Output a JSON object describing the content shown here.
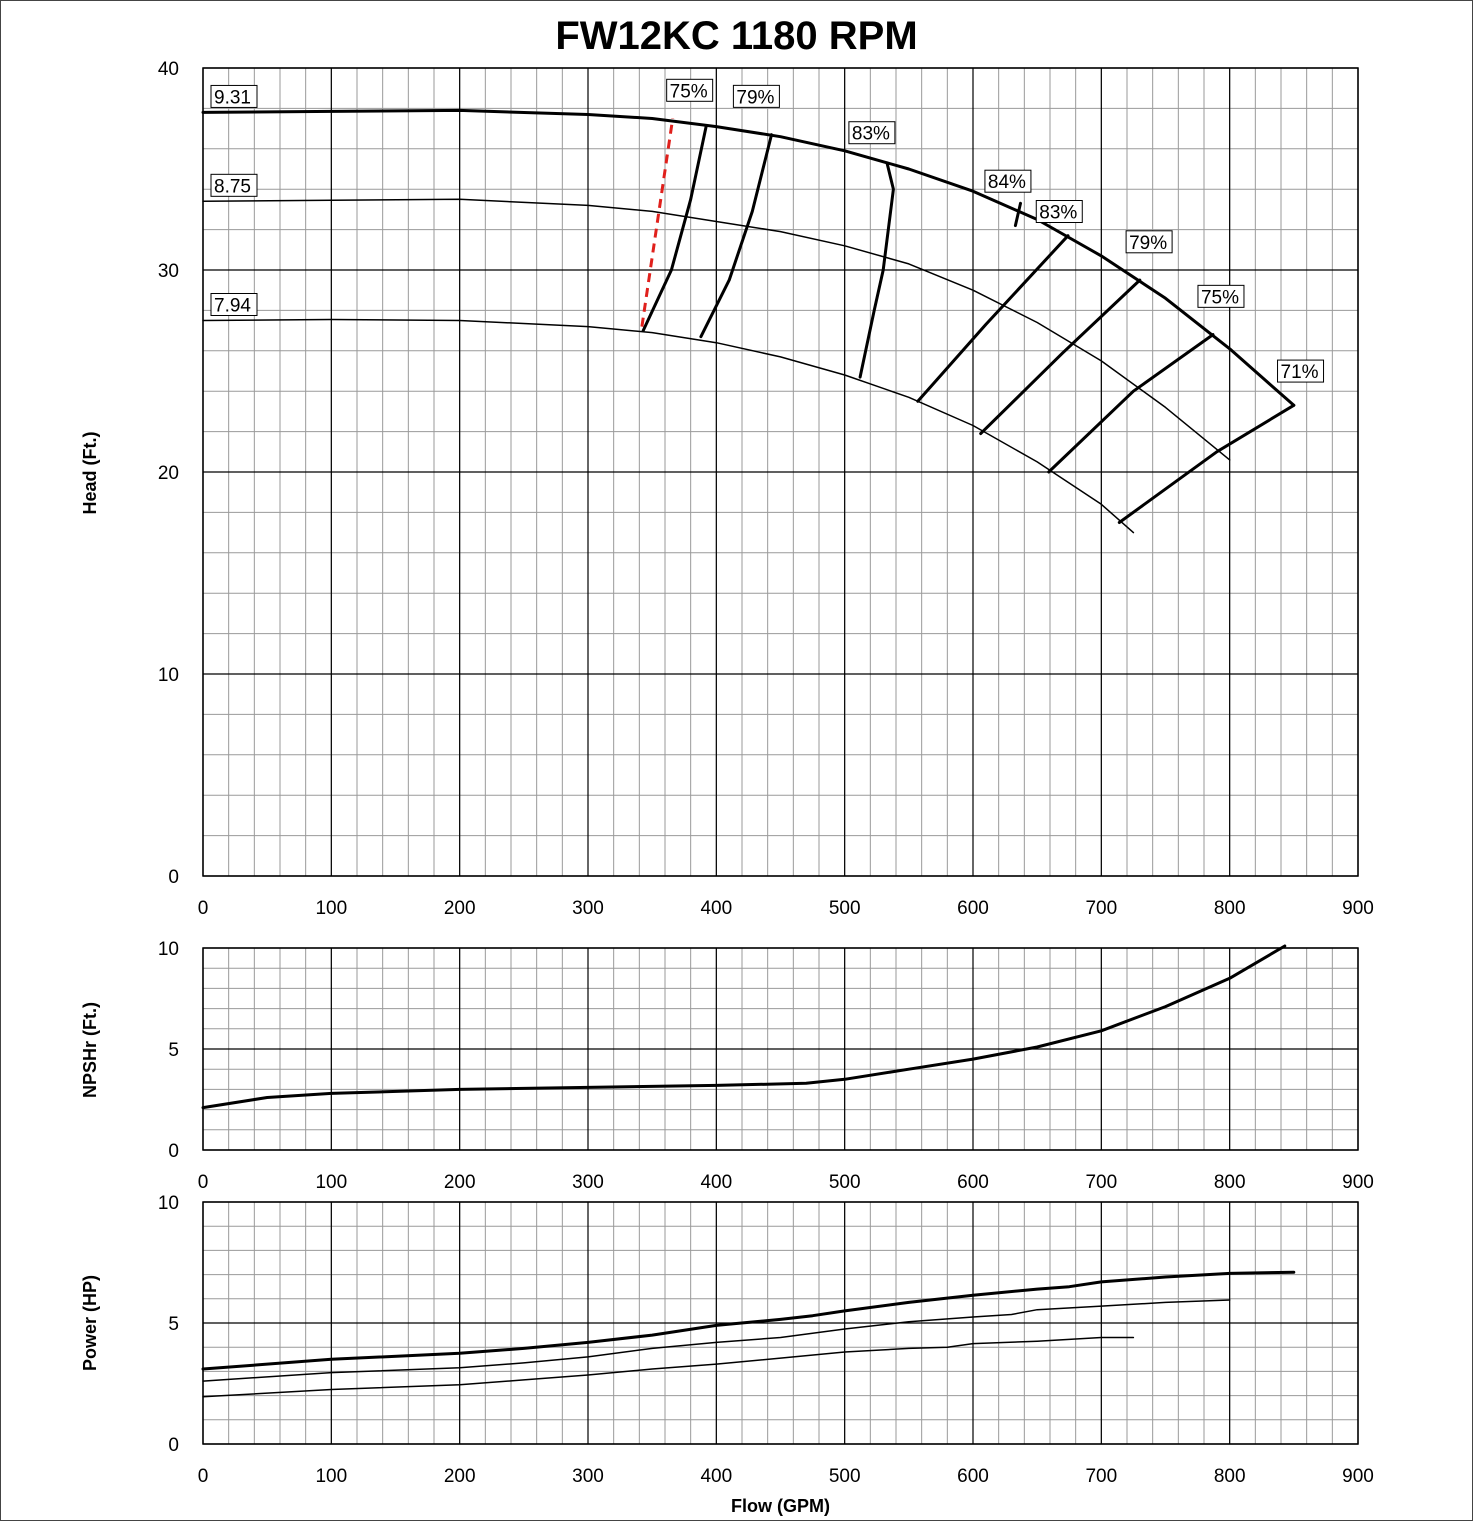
{
  "title": "FW12KC 1180 RPM",
  "chart_data": [
    {
      "type": "line",
      "panel": "head",
      "ylabel": "Head (Ft.)",
      "xlim": [
        0,
        900
      ],
      "ylim": [
        0,
        40
      ],
      "x_ticks": [
        0,
        100,
        200,
        300,
        400,
        500,
        600,
        700,
        800,
        900
      ],
      "y_ticks": [
        0,
        10,
        20,
        30,
        40
      ],
      "grid": true,
      "series": [
        {
          "name": "9.31",
          "kind": "impeller",
          "width": 3,
          "points": [
            [
              0,
              37.8
            ],
            [
              100,
              37.85
            ],
            [
              200,
              37.9
            ],
            [
              300,
              37.7
            ],
            [
              350,
              37.5
            ],
            [
              400,
              37.1
            ],
            [
              450,
              36.6
            ],
            [
              500,
              35.9
            ],
            [
              550,
              35.0
            ],
            [
              600,
              33.9
            ],
            [
              650,
              32.5
            ],
            [
              700,
              30.7
            ],
            [
              750,
              28.6
            ],
            [
              800,
              26.1
            ],
            [
              850,
              23.3
            ]
          ]
        },
        {
          "name": "8.75",
          "kind": "impeller",
          "width": 1.5,
          "points": [
            [
              0,
              33.4
            ],
            [
              100,
              33.45
            ],
            [
              200,
              33.5
            ],
            [
              300,
              33.2
            ],
            [
              350,
              32.9
            ],
            [
              400,
              32.4
            ],
            [
              450,
              31.9
            ],
            [
              500,
              31.2
            ],
            [
              550,
              30.3
            ],
            [
              600,
              29.0
            ],
            [
              650,
              27.4
            ],
            [
              700,
              25.5
            ],
            [
              750,
              23.2
            ],
            [
              800,
              20.6
            ]
          ]
        },
        {
          "name": "7.94",
          "kind": "impeller",
          "width": 1.5,
          "points": [
            [
              0,
              27.5
            ],
            [
              100,
              27.55
            ],
            [
              200,
              27.5
            ],
            [
              300,
              27.2
            ],
            [
              350,
              26.9
            ],
            [
              400,
              26.4
            ],
            [
              450,
              25.7
            ],
            [
              500,
              24.8
            ],
            [
              550,
              23.7
            ],
            [
              600,
              22.3
            ],
            [
              650,
              20.5
            ],
            [
              700,
              18.4
            ],
            [
              725,
              17.0
            ]
          ]
        }
      ],
      "efficiency_lines": [
        {
          "label": "75%",
          "label_at": [
            380,
            38.5
          ],
          "points": [
            [
              343,
              27.0
            ],
            [
              365,
              30.0
            ],
            [
              380,
              33.5
            ],
            [
              392,
              37.1
            ]
          ]
        },
        {
          "label": "79%",
          "label_at": [
            432,
            38.2
          ],
          "points": [
            [
              388,
              26.7
            ],
            [
              410,
              29.5
            ],
            [
              428,
              32.9
            ],
            [
              443,
              36.7
            ]
          ]
        },
        {
          "label": "83%",
          "label_at": [
            522,
            36.4
          ],
          "points": [
            [
              512,
              24.7
            ],
            [
              523,
              28.0
            ],
            [
              530,
              30.0
            ],
            [
              538,
              34.0
            ],
            [
              533,
              35.3
            ]
          ]
        },
        {
          "label": "84%",
          "label_at": [
            628,
            34.0
          ],
          "points": [
            [
              633,
              32.2
            ],
            [
              637,
              33.3
            ]
          ]
        },
        {
          "label": "83%",
          "label_at": [
            668,
            32.5
          ],
          "points": [
            [
              557,
              23.5
            ],
            [
              610,
              27.3
            ],
            [
              674,
              31.7
            ]
          ]
        },
        {
          "label": "79%",
          "label_at": [
            738,
            31.0
          ],
          "points": [
            [
              606,
              21.9
            ],
            [
              670,
              25.9
            ],
            [
              730,
              29.5
            ]
          ]
        },
        {
          "label": "75%",
          "label_at": [
            794,
            28.3
          ],
          "points": [
            [
              659,
              20.0
            ],
            [
              725,
              24.0
            ],
            [
              787,
              26.8
            ]
          ]
        },
        {
          "label": "71%",
          "label_at": [
            856,
            24.6
          ],
          "points": [
            [
              714,
              17.5
            ],
            [
              790,
              21.0
            ],
            [
              850,
              23.3
            ]
          ]
        }
      ],
      "npsh_limit_line": {
        "color": "#e0201c",
        "points": [
          [
            342,
            27.2
          ],
          [
            366,
            37.5
          ]
        ]
      }
    },
    {
      "type": "line",
      "panel": "npsh",
      "ylabel": "NPSHr (Ft.)",
      "xlim": [
        0,
        900
      ],
      "ylim": [
        0,
        10
      ],
      "x_ticks": [
        0,
        100,
        200,
        300,
        400,
        500,
        600,
        700,
        800,
        900
      ],
      "y_ticks": [
        0,
        5,
        10
      ],
      "grid": true,
      "series": [
        {
          "name": "NPSHr",
          "width": 3,
          "points": [
            [
              0,
              2.1
            ],
            [
              50,
              2.6
            ],
            [
              100,
              2.8
            ],
            [
              200,
              3.0
            ],
            [
              300,
              3.1
            ],
            [
              400,
              3.2
            ],
            [
              470,
              3.3
            ],
            [
              500,
              3.5
            ],
            [
              550,
              4.0
            ],
            [
              600,
              4.5
            ],
            [
              650,
              5.1
            ],
            [
              700,
              5.9
            ],
            [
              750,
              7.1
            ],
            [
              800,
              8.5
            ],
            [
              843,
              10.1
            ]
          ]
        }
      ]
    },
    {
      "type": "line",
      "panel": "power",
      "ylabel": "Power (HP)",
      "xlabel": "Flow (GPM)",
      "xlim": [
        0,
        900
      ],
      "ylim": [
        0,
        10
      ],
      "x_ticks": [
        0,
        100,
        200,
        300,
        400,
        500,
        600,
        700,
        800,
        900
      ],
      "y_ticks": [
        0,
        5,
        10
      ],
      "grid": true,
      "series": [
        {
          "name": "9.31",
          "width": 3,
          "points": [
            [
              0,
              3.1
            ],
            [
              100,
              3.5
            ],
            [
              200,
              3.75
            ],
            [
              250,
              3.95
            ],
            [
              300,
              4.2
            ],
            [
              350,
              4.5
            ],
            [
              400,
              4.9
            ],
            [
              450,
              5.15
            ],
            [
              475,
              5.3
            ],
            [
              500,
              5.5
            ],
            [
              550,
              5.85
            ],
            [
              600,
              6.15
            ],
            [
              650,
              6.4
            ],
            [
              675,
              6.5
            ],
            [
              700,
              6.7
            ],
            [
              750,
              6.9
            ],
            [
              800,
              7.05
            ],
            [
              850,
              7.1
            ]
          ]
        },
        {
          "name": "8.75",
          "width": 1.5,
          "points": [
            [
              0,
              2.6
            ],
            [
              100,
              2.95
            ],
            [
              200,
              3.15
            ],
            [
              250,
              3.35
            ],
            [
              300,
              3.6
            ],
            [
              350,
              3.95
            ],
            [
              400,
              4.2
            ],
            [
              450,
              4.4
            ],
            [
              500,
              4.75
            ],
            [
              550,
              5.05
            ],
            [
              600,
              5.25
            ],
            [
              630,
              5.35
            ],
            [
              650,
              5.55
            ],
            [
              700,
              5.7
            ],
            [
              750,
              5.85
            ],
            [
              800,
              5.95
            ]
          ]
        },
        {
          "name": "7.94",
          "width": 1.5,
          "points": [
            [
              0,
              1.95
            ],
            [
              100,
              2.25
            ],
            [
              200,
              2.45
            ],
            [
              250,
              2.65
            ],
            [
              300,
              2.85
            ],
            [
              350,
              3.1
            ],
            [
              400,
              3.3
            ],
            [
              450,
              3.55
            ],
            [
              500,
              3.8
            ],
            [
              550,
              3.95
            ],
            [
              580,
              4.0
            ],
            [
              600,
              4.15
            ],
            [
              650,
              4.25
            ],
            [
              700,
              4.4
            ],
            [
              725,
              4.4
            ]
          ]
        }
      ]
    }
  ]
}
